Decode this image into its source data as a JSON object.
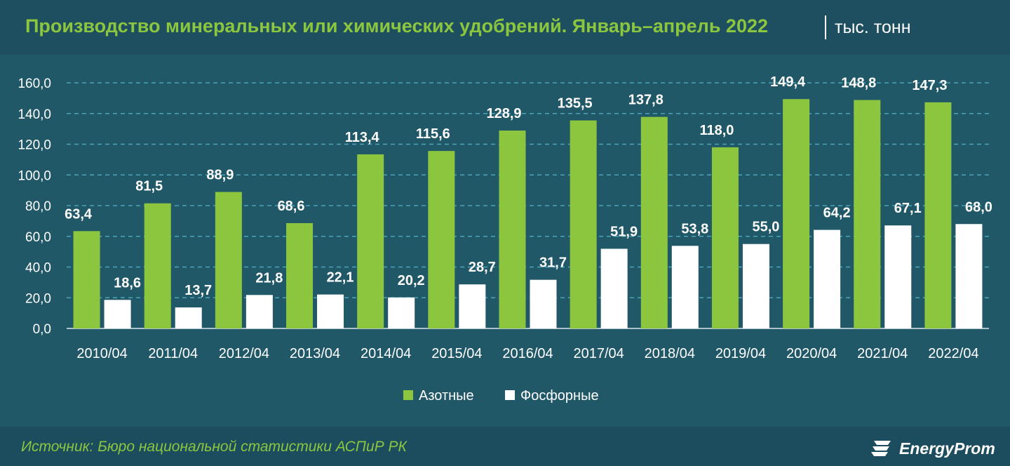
{
  "header": {
    "title": "Производство минеральных или химических удобрений. Январь–апрель 2022",
    "unit": "тыс. тонн"
  },
  "footer": {
    "source": "Источник: Бюро национальной статистики АСПиР РК",
    "logo_text": "EnergyProm"
  },
  "colors": {
    "background": "#205566",
    "nitrogen": "#8cc63f",
    "phosphorus": "#ffffff",
    "grid": "#4aa3b8",
    "text": "#ffffff"
  },
  "chart_data": {
    "type": "bar",
    "categories": [
      "2010/04",
      "2011/04",
      "2012/04",
      "2013/04",
      "2014/04",
      "2015/04",
      "2016/04",
      "2017/04",
      "2018/04",
      "2019/04",
      "2020/04",
      "2021/04",
      "2022/04"
    ],
    "series": [
      {
        "name": "Азотные",
        "values": [
          63.4,
          81.5,
          88.9,
          68.6,
          113.4,
          115.6,
          128.9,
          135.5,
          137.8,
          118.0,
          149.4,
          148.8,
          147.3
        ]
      },
      {
        "name": "Фосфорные",
        "values": [
          18.6,
          13.7,
          21.8,
          22.1,
          20.2,
          28.7,
          31.7,
          51.9,
          53.8,
          55.0,
          64.2,
          67.1,
          68.0
        ]
      }
    ],
    "value_labels": [
      [
        "63,4",
        "81,5",
        "88,9",
        "68,6",
        "113,4",
        "115,6",
        "128,9",
        "135,5",
        "137,8",
        "118,0",
        "149,4",
        "148,8",
        "147,3"
      ],
      [
        "18,6",
        "13,7",
        "21,8",
        "22,1",
        "20,2",
        "28,7",
        "31,7",
        "51,9",
        "53,8",
        "55,0",
        "64,2",
        "67,1",
        "68,0"
      ]
    ],
    "y_ticks": [
      "0,0",
      "20,0",
      "40,0",
      "60,0",
      "80,0",
      "100,0",
      "120,0",
      "140,0",
      "160,0"
    ],
    "ylim": [
      0,
      160
    ],
    "grid": true,
    "legend_position": "bottom-center"
  }
}
